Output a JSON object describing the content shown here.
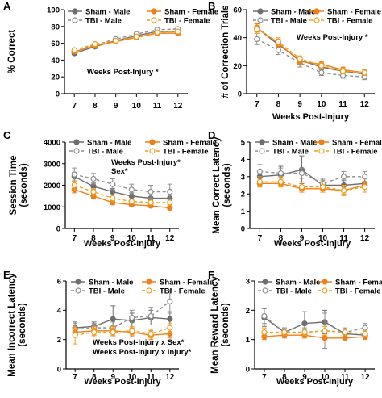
{
  "colors": {
    "sham_male": "#6e6e6e",
    "tbi_male": "#8f8f8f",
    "sham_female": "#ef7f1a",
    "tbi_female": "#f0a020",
    "axis": "#000000"
  },
  "chart_data": [
    {
      "panel": "A",
      "type": "line",
      "xlabel": "",
      "ylabel": "% Correct",
      "x": [
        7,
        8,
        9,
        10,
        11,
        12
      ],
      "ylim": [
        0,
        100
      ],
      "yticks": [
        0,
        20,
        40,
        60,
        80,
        100
      ],
      "ytick_labels": [
        "0",
        "20",
        "40",
        "60",
        "80",
        "100"
      ],
      "legend": [
        "Sham - Male",
        "Sham - Female",
        "TBI - Male",
        "TBI - Female"
      ],
      "annotations": [
        "Weeks Post-Injury *"
      ],
      "series": [
        {
          "name": "Sham - Male",
          "values": [
            48,
            56,
            63,
            69,
            74,
            74
          ],
          "err": [
            2,
            2,
            2,
            2,
            2,
            2
          ]
        },
        {
          "name": "TBI - Male",
          "values": [
            50,
            58,
            65,
            71,
            76,
            77
          ],
          "err": [
            2,
            2,
            2,
            2,
            2,
            2
          ]
        },
        {
          "name": "Sham - Female",
          "values": [
            50,
            57,
            62,
            67,
            72,
            72
          ],
          "err": [
            2,
            2,
            2,
            2,
            2,
            2
          ]
        },
        {
          "name": "TBI - Female",
          "values": [
            52,
            59,
            63,
            68,
            73,
            74
          ],
          "err": [
            2,
            2,
            2,
            2,
            2,
            2
          ]
        }
      ]
    },
    {
      "panel": "B",
      "type": "line",
      "xlabel": "Weeks Post-Injury",
      "ylabel": "# of Correction Trials",
      "x": [
        7,
        8,
        9,
        10,
        11,
        12
      ],
      "ylim": [
        0,
        60
      ],
      "yticks": [
        0,
        20,
        40,
        60
      ],
      "ytick_labels": [
        "0",
        "20",
        "40",
        "60"
      ],
      "legend": [
        "Sham - Male",
        "Sham - Female",
        "TBI - Male",
        "TBI - Female"
      ],
      "annotations": [
        "Weeks Post-Injury *"
      ],
      "series": [
        {
          "name": "Sham - Male",
          "values": [
            47,
            35,
            24,
            19,
            16,
            14
          ],
          "err": [
            3,
            3,
            2,
            2,
            2,
            2
          ]
        },
        {
          "name": "TBI - Male",
          "values": [
            39,
            31,
            22,
            15,
            13,
            12
          ],
          "err": [
            4,
            3,
            3,
            2,
            2,
            2
          ]
        },
        {
          "name": "Sham - Female",
          "values": [
            47,
            36,
            23,
            21,
            17,
            15
          ],
          "err": [
            3,
            3,
            2,
            2,
            2,
            2
          ]
        },
        {
          "name": "TBI - Female",
          "values": [
            46,
            37,
            25,
            20,
            16,
            15
          ],
          "err": [
            3,
            3,
            2,
            2,
            2,
            2
          ]
        }
      ]
    },
    {
      "panel": "C",
      "type": "line",
      "xlabel": "Weeks Post-Injury",
      "ylabel": "Session Time (seconds)",
      "x": [
        7,
        8,
        9,
        10,
        11,
        12
      ],
      "ylim": [
        0,
        4000
      ],
      "yticks": [
        0,
        1000,
        2000,
        3000,
        4000
      ],
      "ytick_labels": [
        "0",
        "1000",
        "2000",
        "3000",
        "4000"
      ],
      "legend": [
        "Sham - Male",
        "Sham - Female",
        "TBI - Male",
        "TBI - Female"
      ],
      "annotations": [
        "Weeks Post-Injury*",
        "Sex*"
      ],
      "series": [
        {
          "name": "Sham - Male",
          "values": [
            2400,
            1950,
            1700,
            1500,
            1400,
            1400
          ],
          "err": [
            200,
            150,
            150,
            150,
            150,
            150
          ]
        },
        {
          "name": "TBI - Male",
          "values": [
            2500,
            2300,
            2050,
            1800,
            1700,
            1700
          ],
          "err": [
            300,
            250,
            250,
            250,
            300,
            350
          ]
        },
        {
          "name": "Sham - Female",
          "values": [
            1800,
            1500,
            1200,
            1100,
            1050,
            950
          ],
          "err": [
            150,
            100,
            100,
            100,
            80,
            80
          ]
        },
        {
          "name": "TBI - Female",
          "values": [
            2000,
            1700,
            1400,
            1250,
            1200,
            1200
          ],
          "err": [
            200,
            150,
            150,
            100,
            100,
            100
          ]
        }
      ]
    },
    {
      "panel": "D",
      "type": "line",
      "xlabel": "Weeks Post-Injury",
      "ylabel": "Mean Correct Latency (seconds)",
      "x": [
        7,
        8,
        9,
        10,
        11,
        12
      ],
      "ylim": [
        0,
        5
      ],
      "yticks": [
        0,
        1,
        2,
        3,
        4,
        5
      ],
      "ytick_labels": [
        "0",
        "1",
        "2",
        "3",
        "4",
        "5"
      ],
      "legend": [
        "Sham - Male",
        "Sham - Female",
        "TBI - Male",
        "TBI - Female"
      ],
      "annotations": [],
      "series": [
        {
          "name": "Sham - Male",
          "values": [
            3.0,
            3.1,
            3.4,
            2.5,
            2.5,
            2.6
          ],
          "err": [
            0.3,
            0.5,
            0.8,
            0.3,
            0.3,
            0.3
          ]
        },
        {
          "name": "TBI - Male",
          "values": [
            3.3,
            3.2,
            3.2,
            2.6,
            3.0,
            3.0
          ],
          "err": [
            0.4,
            0.3,
            0.3,
            0.3,
            0.3,
            0.3
          ]
        },
        {
          "name": "Sham - Female",
          "values": [
            2.6,
            2.6,
            2.3,
            2.3,
            2.2,
            2.5
          ],
          "err": [
            0.2,
            0.2,
            0.2,
            0.2,
            0.2,
            0.2
          ]
        },
        {
          "name": "TBI - Female",
          "values": [
            2.7,
            2.7,
            2.4,
            2.4,
            2.2,
            2.4
          ],
          "err": [
            0.3,
            0.3,
            0.3,
            0.3,
            0.3,
            0.3
          ]
        }
      ]
    },
    {
      "panel": "E",
      "type": "line",
      "xlabel": "Weeks Post-Injury",
      "ylabel": "Mean Incorrect Latency (seconds)",
      "x": [
        7,
        8,
        9,
        10,
        11,
        12
      ],
      "ylim": [
        0,
        6
      ],
      "yticks": [
        0,
        2,
        4,
        6
      ],
      "ytick_labels": [
        "0",
        "2",
        "4",
        "6"
      ],
      "legend": [
        "Sham - Male",
        "Sham - Female",
        "TBI - Male",
        "TBI - Female"
      ],
      "annotations": [
        "Weeks Post-Injury x Sex*",
        "Weeks Post-Injury x Injury*"
      ],
      "series": [
        {
          "name": "Sham - Male",
          "values": [
            2.8,
            2.9,
            3.4,
            3.3,
            3.5,
            3.4
          ],
          "err": [
            0.4,
            0.3,
            0.9,
            0.5,
            0.5,
            0.5
          ]
        },
        {
          "name": "TBI - Male",
          "values": [
            2.7,
            2.8,
            2.8,
            3.5,
            3.6,
            4.6
          ],
          "err": [
            0.4,
            0.3,
            0.4,
            0.5,
            0.6,
            0.8
          ]
        },
        {
          "name": "Sham - Female",
          "values": [
            2.5,
            2.6,
            2.6,
            2.5,
            2.3,
            2.4
          ],
          "err": [
            0.3,
            0.3,
            0.3,
            0.3,
            0.3,
            0.3
          ]
        },
        {
          "name": "TBI - Female",
          "values": [
            2.3,
            2.5,
            2.5,
            2.6,
            2.4,
            2.8
          ],
          "err": [
            0.6,
            0.3,
            0.3,
            0.3,
            0.3,
            0.3
          ]
        }
      ]
    },
    {
      "panel": "F",
      "type": "line",
      "xlabel": "Weeks Post-Injury",
      "ylabel": "Mean Reward Latency (seconds)",
      "x": [
        7,
        8,
        9,
        10,
        11,
        12
      ],
      "ylim": [
        0,
        3
      ],
      "yticks": [
        0,
        1,
        2,
        3
      ],
      "ytick_labels": [
        "0",
        "1",
        "2",
        "3"
      ],
      "legend": [
        "Sham - Male",
        "Sham - Female",
        "TBI - Male",
        "TBI - Female"
      ],
      "annotations": [],
      "series": [
        {
          "name": "Sham - Male",
          "values": [
            1.75,
            1.25,
            1.55,
            1.6,
            1.2,
            1.15
          ],
          "err": [
            0.3,
            0.15,
            0.4,
            0.4,
            0.15,
            0.1
          ]
        },
        {
          "name": "TBI - Male",
          "values": [
            1.8,
            1.25,
            1.25,
            1.3,
            1.25,
            1.4
          ],
          "err": [
            0.25,
            0.15,
            0.15,
            0.6,
            0.15,
            0.15
          ]
        },
        {
          "name": "Sham - Female",
          "values": [
            1.1,
            1.15,
            1.15,
            1.05,
            1.05,
            1.1
          ],
          "err": [
            0.1,
            0.1,
            0.1,
            0.1,
            0.1,
            0.1
          ]
        },
        {
          "name": "TBI - Female",
          "values": [
            1.25,
            1.25,
            1.25,
            1.3,
            1.25,
            1.2
          ],
          "err": [
            0.15,
            0.1,
            0.1,
            0.15,
            0.1,
            0.1
          ]
        }
      ]
    }
  ]
}
